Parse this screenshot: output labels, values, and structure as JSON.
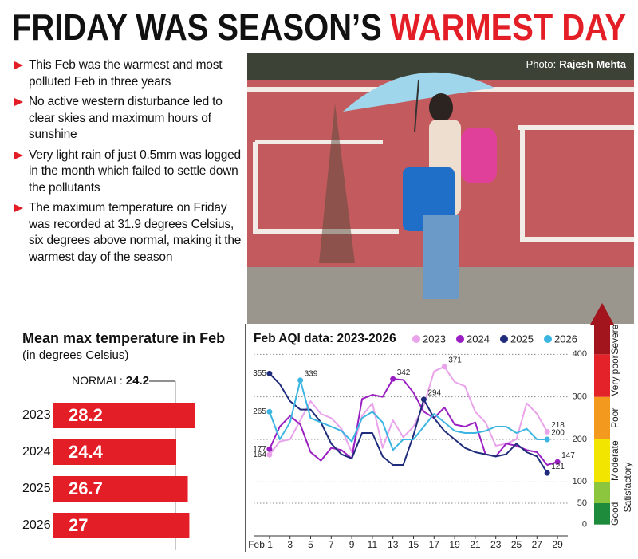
{
  "headline": {
    "black": "FRIDAY WAS SEASON’S",
    "red": "WARMEST DAY"
  },
  "bullets": [
    "This Feb was the warmest and most polluted Feb in three years",
    "No active western disturbance led to clear skies and maximum hours of sunshine",
    "Very light rain of just 0.5mm was logged in the month which failed to settle down the pollutants",
    "The maximum temperature on Friday was recorded at 31.9 degrees Celsius, six degrees above normal, making it the warmest day of the season"
  ],
  "photo_credit": {
    "prefix": "Photo:",
    "name": "Rajesh Mehta"
  },
  "chart_data": [
    {
      "type": "bar",
      "title": "Mean max temperature in Feb",
      "subtitle": "(in degrees Celsius)",
      "categories": [
        "2023",
        "2024",
        "2025",
        "2026"
      ],
      "values": [
        28.2,
        24.4,
        26.7,
        27
      ],
      "color": "#e41e26",
      "normal_label": "NORMAL:",
      "normal": 24.2
    },
    {
      "type": "line",
      "title": "Feb AQI data: 2023-2026",
      "x": [
        1,
        2,
        3,
        4,
        5,
        6,
        7,
        8,
        9,
        10,
        11,
        12,
        13,
        14,
        15,
        16,
        17,
        18,
        19,
        20,
        21,
        22,
        23,
        24,
        25,
        26,
        27,
        28,
        29
      ],
      "xlim": [
        0,
        30
      ],
      "xticks": [
        {
          "value": 1,
          "label": "Feb 1"
        },
        3,
        5,
        7,
        9,
        11,
        13,
        15,
        17,
        19,
        21,
        23,
        25,
        27,
        29
      ],
      "ylim": [
        -25,
        470
      ],
      "yticks": [
        0,
        50,
        100,
        200,
        300,
        400
      ],
      "grid": true,
      "series": [
        {
          "name": "2023",
          "color": "#e9a3ea",
          "labeled_points": [
            0,
            17,
            27
          ],
          "values": [
            164,
            195,
            200,
            245,
            290,
            260,
            250,
            225,
            170,
            255,
            285,
            180,
            245,
            205,
            230,
            280,
            360,
            371,
            335,
            325,
            265,
            240,
            185,
            190,
            200,
            285,
            260,
            218,
            null
          ]
        },
        {
          "name": "2024",
          "color": "#9a1fc2",
          "labeled_points": [
            0,
            12,
            28
          ],
          "values": [
            177,
            230,
            255,
            235,
            170,
            150,
            180,
            175,
            155,
            295,
            305,
            300,
            342,
            340,
            310,
            265,
            250,
            275,
            235,
            230,
            240,
            165,
            160,
            190,
            185,
            175,
            170,
            140,
            147
          ]
        },
        {
          "name": "2025",
          "color": "#1f2c7c",
          "labeled_points": [
            0,
            15,
            27
          ],
          "values": [
            355,
            330,
            290,
            270,
            270,
            240,
            190,
            165,
            155,
            215,
            215,
            160,
            140,
            140,
            210,
            294,
            250,
            220,
            200,
            180,
            170,
            165,
            160,
            165,
            190,
            170,
            160,
            121,
            null
          ]
        },
        {
          "name": "2026",
          "color": "#3db5e3",
          "labeled_points": [
            0,
            3,
            27
          ],
          "values": [
            265,
            200,
            240,
            339,
            250,
            240,
            230,
            220,
            195,
            250,
            265,
            240,
            175,
            200,
            200,
            230,
            260,
            240,
            220,
            215,
            215,
            220,
            230,
            230,
            215,
            225,
            200,
            200,
            null
          ]
        }
      ],
      "bands": [
        {
          "label": "Good",
          "from": 0,
          "color": "#1d8a3c"
        },
        {
          "label": "Satisfactory",
          "from": 50,
          "color": "#8cc63f"
        },
        {
          "label": "Moderate",
          "from": 100,
          "color": "#f2e600"
        },
        {
          "label": "Poor",
          "from": 200,
          "color": "#f39a1e"
        },
        {
          "label": "Very poor",
          "from": 300,
          "color": "#e3222a"
        },
        {
          "label": "Severe",
          "from": 400,
          "color": "#a3151c"
        }
      ]
    }
  ]
}
